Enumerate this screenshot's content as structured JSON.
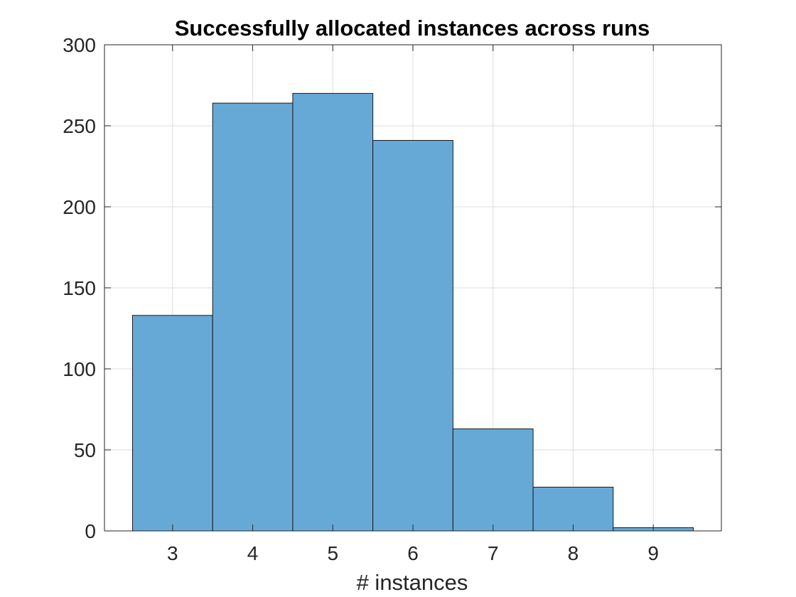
{
  "chart_data": {
    "type": "bar",
    "title": "Successfully allocated instances across runs",
    "xlabel": "# instances",
    "ylabel": "",
    "categories": [
      "3",
      "4",
      "5",
      "6",
      "7",
      "8",
      "9"
    ],
    "x": [
      3,
      4,
      5,
      6,
      7,
      8,
      9
    ],
    "values": [
      133,
      264,
      270,
      241,
      63,
      27,
      2
    ],
    "xlim": [
      2.15,
      9.85
    ],
    "ylim": [
      0,
      300
    ],
    "xticks": [
      3,
      4,
      5,
      6,
      7,
      8,
      9
    ],
    "yticks": [
      0,
      50,
      100,
      150,
      200,
      250,
      300
    ],
    "bar_width": 1,
    "grid": true,
    "legend": "none",
    "colors": {
      "bar_fill": "#66a9d7",
      "bar_edge": "#1a1a1a",
      "axis": "#262626",
      "grid": "#dcdcdc"
    }
  }
}
